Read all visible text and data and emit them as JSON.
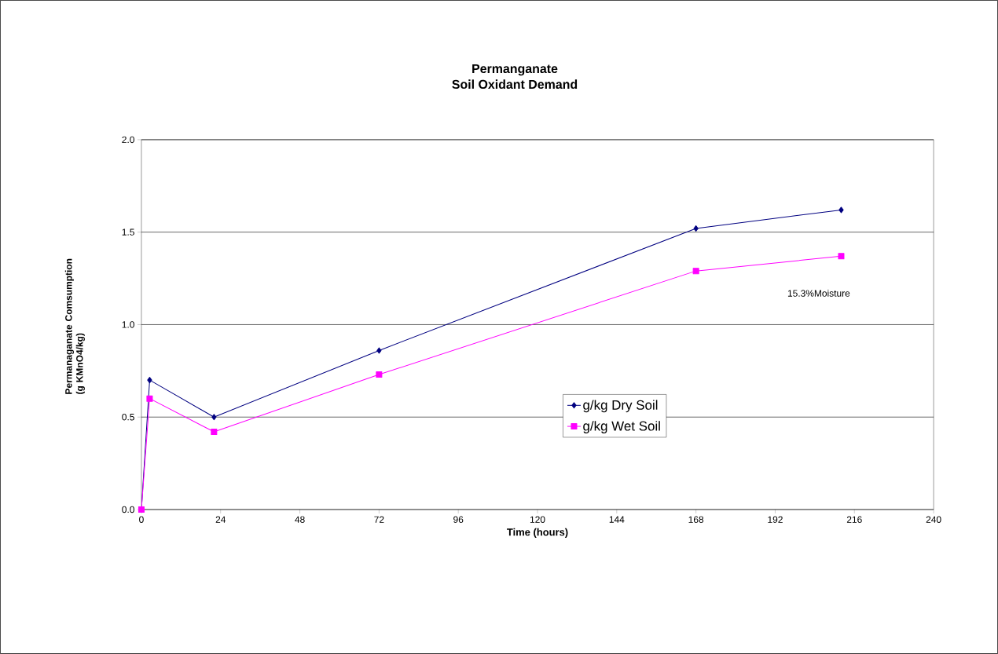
{
  "chart_data": {
    "type": "line",
    "title": "Permanganate",
    "subtitle": "Soil Oxidant Demand",
    "xlabel": "Time (hours)",
    "ylabel": "Permanaganate Comsumption (g KMnO4/kg)",
    "x": [
      0,
      2.5,
      22,
      72,
      168,
      212
    ],
    "series": [
      {
        "name": "g/kg Dry Soil",
        "color": "#000080",
        "marker": "diamond",
        "values": [
          0,
          0.7,
          0.5,
          0.86,
          1.52,
          1.62
        ]
      },
      {
        "name": "g/kg Wet Soil",
        "color": "#ff00ff",
        "marker": "square",
        "values": [
          0,
          0.6,
          0.42,
          0.73,
          1.29,
          1.37
        ]
      }
    ],
    "xlim": [
      0,
      240
    ],
    "xticks": [
      0,
      24,
      48,
      72,
      96,
      120,
      144,
      168,
      192,
      216,
      240
    ],
    "ylim": [
      0,
      2
    ],
    "yticks": [
      {
        "value": 0,
        "label": "0.0"
      },
      {
        "value": 0.5,
        "label": "0.5"
      },
      {
        "value": 1,
        "label": "1.0"
      },
      {
        "value": 1.5,
        "label": "1.5"
      },
      {
        "value": 2,
        "label": "2.0"
      }
    ],
    "grid": "y",
    "legend": "center right",
    "line_style": "solid",
    "annotations": [
      "15.3%Moisture"
    ]
  }
}
